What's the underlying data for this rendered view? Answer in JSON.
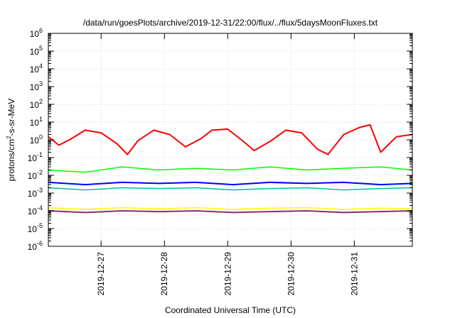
{
  "chart_data": {
    "type": "line",
    "title": "/data/run/goesPlots/archive/2019-12-31/22:00/flux/../flux/5daysMoonFluxes.txt",
    "xlabel": "Coordinated Universal Time (UTC)",
    "ylabel_parts": [
      "protons/cm",
      "2",
      "-s-sr-MeV"
    ],
    "yscale": "log",
    "ylim_exponents": [
      -6,
      6
    ],
    "y_tick_base": "10",
    "y_tick_exponents": [
      "-6",
      "-5",
      "-4",
      "-3",
      "-2",
      "-1",
      "0",
      "1",
      "2",
      "3",
      "4",
      "5",
      "6"
    ],
    "xlim_days": [
      "2019-12-26T04:00",
      "2019-12-31T22:00"
    ],
    "x_ticks": [
      "2019-12-27",
      "2019-12-28",
      "2019-12-29",
      "2019-12-30",
      "2019-12-31"
    ],
    "grid": true,
    "legend": "none",
    "series": [
      {
        "color": "#ff0000",
        "width": 2,
        "x": [
          "2019-12-26T04:00",
          "2019-12-26T08:00",
          "2019-12-26T12:00",
          "2019-12-26T18:00",
          "2019-12-27T00:00",
          "2019-12-27T06:00",
          "2019-12-27T10:00",
          "2019-12-27T14:00",
          "2019-12-27T20:00",
          "2019-12-28T02:00",
          "2019-12-28T08:00",
          "2019-12-28T14:00",
          "2019-12-28T18:00",
          "2019-12-29T00:00",
          "2019-12-29T06:00",
          "2019-12-29T10:00",
          "2019-12-29T16:00",
          "2019-12-29T22:00",
          "2019-12-30T04:00",
          "2019-12-30T10:00",
          "2019-12-30T14:00",
          "2019-12-30T20:00",
          "2019-12-31T02:00",
          "2019-12-31T06:00",
          "2019-12-31T10:00",
          "2019-12-31T16:00",
          "2019-12-31T22:00"
        ],
        "y": [
          1.5,
          0.5,
          1.0,
          3.5,
          2.5,
          0.6,
          0.15,
          0.9,
          3.5,
          2.0,
          0.4,
          1.2,
          3.5,
          4.0,
          0.8,
          0.25,
          0.8,
          3.5,
          2.5,
          0.3,
          0.15,
          2.0,
          5.0,
          7.0,
          0.2,
          1.5,
          2.0
        ]
      },
      {
        "color": "#00ff00",
        "width": 1.5,
        "x": [
          "2019-12-26T04:00",
          "2019-12-26T18:00",
          "2019-12-27T08:00",
          "2019-12-27T22:00",
          "2019-12-28T12:00",
          "2019-12-29T02:00",
          "2019-12-29T16:00",
          "2019-12-30T06:00",
          "2019-12-30T20:00",
          "2019-12-31T10:00",
          "2019-12-31T22:00"
        ],
        "y": [
          0.02,
          0.015,
          0.03,
          0.02,
          0.025,
          0.02,
          0.03,
          0.02,
          0.025,
          0.03,
          0.02
        ]
      },
      {
        "color": "#0000ff",
        "width": 2,
        "x": [
          "2019-12-26T04:00",
          "2019-12-26T18:00",
          "2019-12-27T08:00",
          "2019-12-27T22:00",
          "2019-12-28T12:00",
          "2019-12-29T02:00",
          "2019-12-29T16:00",
          "2019-12-30T06:00",
          "2019-12-30T20:00",
          "2019-12-31T10:00",
          "2019-12-31T22:00"
        ],
        "y": [
          0.004,
          0.003,
          0.004,
          0.0035,
          0.004,
          0.003,
          0.004,
          0.0035,
          0.004,
          0.003,
          0.0035
        ]
      },
      {
        "color": "#00c0a0",
        "width": 1.5,
        "x": [
          "2019-12-26T04:00",
          "2019-12-26T18:00",
          "2019-12-27T08:00",
          "2019-12-27T22:00",
          "2019-12-28T12:00",
          "2019-12-29T02:00",
          "2019-12-29T16:00",
          "2019-12-30T06:00",
          "2019-12-30T20:00",
          "2019-12-31T10:00",
          "2019-12-31T22:00"
        ],
        "y": [
          0.002,
          0.0015,
          0.002,
          0.0018,
          0.002,
          0.0015,
          0.0018,
          0.002,
          0.0015,
          0.0018,
          0.002
        ]
      },
      {
        "color": "#ffff00",
        "width": 1.5,
        "x": [
          "2019-12-26T04:00",
          "2019-12-26T18:00",
          "2019-12-27T08:00",
          "2019-12-27T22:00",
          "2019-12-28T12:00",
          "2019-12-29T02:00",
          "2019-12-29T16:00",
          "2019-12-30T06:00",
          "2019-12-30T20:00",
          "2019-12-31T10:00",
          "2019-12-31T22:00"
        ],
        "y": [
          0.00015,
          0.00012,
          0.00015,
          0.00013,
          0.00015,
          0.00012,
          0.00014,
          0.00015,
          0.00012,
          0.00014,
          0.00013
        ]
      },
      {
        "color": "#903060",
        "width": 2,
        "x": [
          "2019-12-26T04:00",
          "2019-12-26T18:00",
          "2019-12-27T08:00",
          "2019-12-27T22:00",
          "2019-12-28T12:00",
          "2019-12-29T02:00",
          "2019-12-29T16:00",
          "2019-12-30T06:00",
          "2019-12-30T20:00",
          "2019-12-31T10:00",
          "2019-12-31T22:00"
        ],
        "y": [
          0.0001,
          8e-05,
          0.0001,
          9e-05,
          0.0001,
          8e-05,
          9e-05,
          0.0001,
          8e-05,
          9e-05,
          0.0001
        ]
      }
    ]
  }
}
